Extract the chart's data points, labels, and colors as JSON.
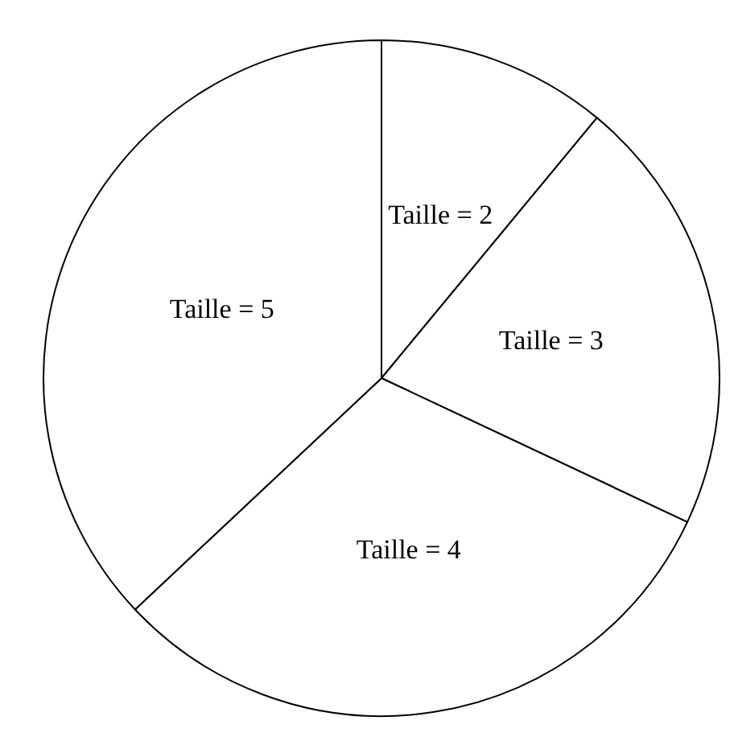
{
  "chart_data": {
    "type": "pie",
    "categories": [
      "Taille = 2",
      "Taille = 3",
      "Taille = 4",
      "Taille = 5"
    ],
    "values": [
      11,
      21,
      31,
      37
    ],
    "colors": [
      "#ffffff",
      "#ffffff",
      "#ffffff",
      "#ffffff"
    ],
    "legend": false
  }
}
